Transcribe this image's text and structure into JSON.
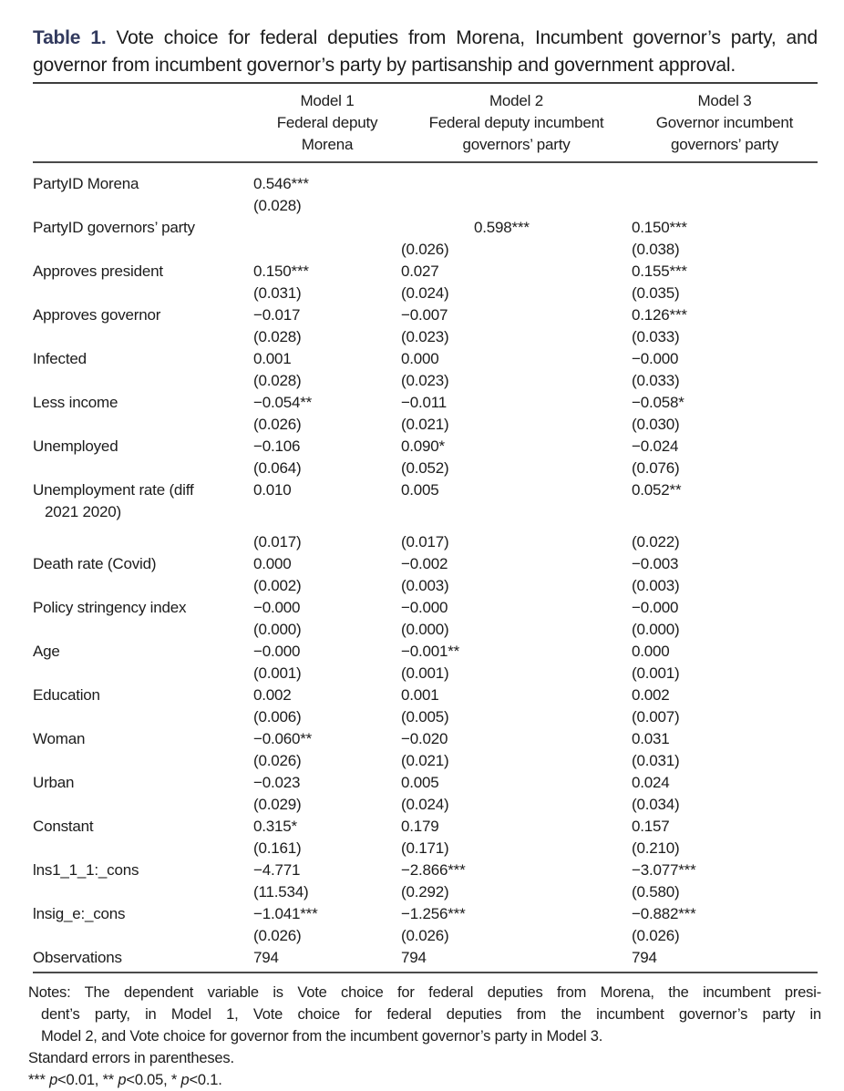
{
  "colors": {
    "title_accent": "#323a5e",
    "text": "#1c1c1c",
    "rule": "#4a4a4a"
  },
  "title": {
    "label": "Table 1.",
    "text": "Vote choice for federal deputies from Morena, Incumbent governor’s party, and governor from incumbent governor’s party by partisanship and government approval."
  },
  "columns": [
    {
      "model": "Model 1",
      "desc": [
        "Federal deputy",
        "Morena"
      ]
    },
    {
      "model": "Model 2",
      "desc": [
        "Federal deputy incumbent",
        "governors’ party"
      ]
    },
    {
      "model": "Model 3",
      "desc": [
        "Governor incumbent",
        "governors’ party"
      ]
    }
  ],
  "rows": [
    {
      "label": "PartyID Morena",
      "coef": [
        "0.546***",
        "",
        ""
      ],
      "se": [
        "(0.028)",
        "",
        ""
      ]
    },
    {
      "label": "PartyID governors’ party",
      "coef": [
        "",
        "0.598***",
        "0.150***"
      ],
      "se": [
        "",
        "(0.026)",
        "(0.038)"
      ]
    },
    {
      "label": "Approves president",
      "coef": [
        "0.150***",
        "0.027",
        "0.155***"
      ],
      "se": [
        "(0.031)",
        "(0.024)",
        "(0.035)"
      ]
    },
    {
      "label": "Approves governor",
      "coef": [
        "−0.017",
        "−0.007",
        "0.126***"
      ],
      "se": [
        "(0.028)",
        "(0.023)",
        "(0.033)"
      ]
    },
    {
      "label": "Infected",
      "coef": [
        "0.001",
        "0.000",
        "−0.000"
      ],
      "se": [
        "(0.028)",
        "(0.023)",
        "(0.033)"
      ]
    },
    {
      "label": "Less income",
      "coef": [
        "−0.054**",
        "−0.011",
        "−0.058*"
      ],
      "se": [
        "(0.026)",
        "(0.021)",
        "(0.030)"
      ]
    },
    {
      "label": "Unemployed",
      "coef": [
        "−0.106",
        "0.090*",
        "−0.024"
      ],
      "se": [
        "(0.064)",
        "(0.052)",
        "(0.076)"
      ]
    },
    {
      "label": "Unemployment rate (diff",
      "label2": "2021 2020)",
      "coef": [
        "0.010",
        "0.005",
        "0.052**"
      ],
      "se": [
        "(0.017)",
        "(0.017)",
        "(0.022)"
      ]
    },
    {
      "label": "Death rate (Covid)",
      "coef": [
        "0.000",
        "−0.002",
        "−0.003"
      ],
      "se": [
        "(0.002)",
        "(0.003)",
        "(0.003)"
      ]
    },
    {
      "label": "Policy stringency index",
      "coef": [
        "−0.000",
        "−0.000",
        "−0.000"
      ],
      "se": [
        "(0.000)",
        "(0.000)",
        "(0.000)"
      ]
    },
    {
      "label": "Age",
      "coef": [
        "−0.000",
        "−0.001**",
        "0.000"
      ],
      "se": [
        "(0.001)",
        "(0.001)",
        "(0.001)"
      ]
    },
    {
      "label": "Education",
      "coef": [
        "0.002",
        "0.001",
        "0.002"
      ],
      "se": [
        "(0.006)",
        "(0.005)",
        "(0.007)"
      ]
    },
    {
      "label": "Woman",
      "coef": [
        "−0.060**",
        "−0.020",
        "0.031"
      ],
      "se": [
        "(0.026)",
        "(0.021)",
        "(0.031)"
      ]
    },
    {
      "label": "Urban",
      "coef": [
        "−0.023",
        "0.005",
        "0.024"
      ],
      "se": [
        "(0.029)",
        "(0.024)",
        "(0.034)"
      ]
    },
    {
      "label": "Constant",
      "coef": [
        "0.315*",
        "0.179",
        "0.157"
      ],
      "se": [
        "(0.161)",
        "(0.171)",
        "(0.210)"
      ]
    },
    {
      "label": "lns1_1_1:_cons",
      "coef": [
        "−4.771",
        "−2.866***",
        "−3.077***"
      ],
      "se": [
        "(11.534)",
        "(0.292)",
        "(0.580)"
      ]
    },
    {
      "label": "lnsig_e:_cons",
      "coef": [
        "−1.041***",
        "−1.256***",
        "−0.882***"
      ],
      "se": [
        "(0.026)",
        "(0.026)",
        "(0.026)"
      ]
    },
    {
      "label": "Observations",
      "coef": [
        "794",
        "794",
        "794"
      ]
    }
  ],
  "notes": {
    "dependent_variable_lines": [
      "Notes: The dependent variable is Vote choice for federal deputies from Morena, the incumbent presi-",
      "dent’s party, in Model 1, Vote choice for federal deputies from the incumbent governor’s party in",
      "Model 2, and Vote choice for governor from the incumbent governor’s party in Model 3."
    ],
    "se_note": "Standard errors in parentheses.",
    "significance_segments": [
      "*** ",
      "p",
      "<0.01, ** ",
      "p",
      "<0.05, * ",
      "p",
      "<0.1."
    ]
  }
}
